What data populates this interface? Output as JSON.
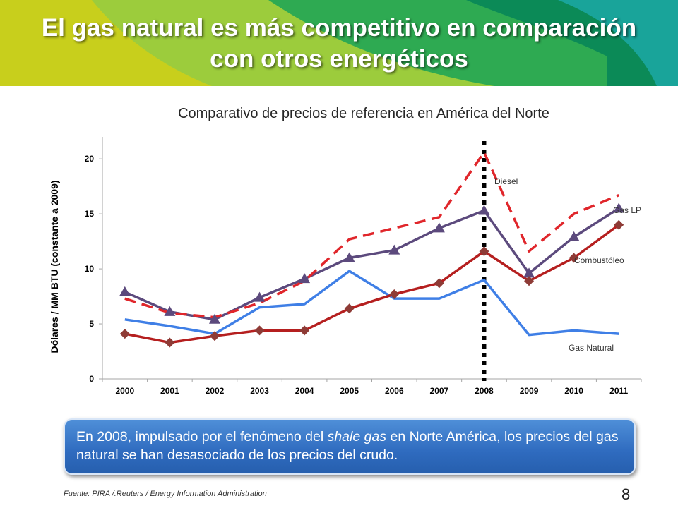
{
  "slide": {
    "title_line1": "El gas natural es más competitivo en comparación",
    "title_line2": "con otros energéticos",
    "callout_pre": "En 2008, impulsado por el fenómeno del ",
    "callout_em": "shale gas",
    "callout_post": " en Norte América, los precios del gas natural se han desasociado de los precios del crudo.",
    "source": "Fuente: PIRA /.Reuters / Energy Information Administration",
    "page_number": "8"
  },
  "colors": {
    "banner": [
      "#c8cf1c",
      "#9ccc3c",
      "#2eaa52",
      "#0b8a57",
      "#19a49a"
    ],
    "diesel": "#e0262b",
    "gas_lp": "#5c4a7d",
    "combustoleo": "#b51f1f",
    "combustoleo_marker": "#8e3b36",
    "gas_natural": "#3f7fe6"
  },
  "chart_data": {
    "type": "line",
    "title": "Comparativo de precios de referencia en América del Norte",
    "xlabel": "",
    "ylabel": "Dólares / MM BTU (constante a 2009)",
    "categories": [
      "2000",
      "2001",
      "2002",
      "2003",
      "2004",
      "2005",
      "2006",
      "2007",
      "2008",
      "2009",
      "2010",
      "2011"
    ],
    "ylim": [
      0,
      22
    ],
    "yticks": [
      "0",
      "5",
      "10",
      "15",
      "20"
    ],
    "grid": false,
    "legend": "inline labels",
    "annotation": "vertical dotted line at 2008",
    "series": [
      {
        "name": "Diesel",
        "style": "dashed",
        "marker": "none",
        "values": [
          7.3,
          6.0,
          5.6,
          6.9,
          8.9,
          12.7,
          13.7,
          14.7,
          20.6,
          11.6,
          15.0,
          16.7
        ]
      },
      {
        "name": "Gas LP",
        "style": "solid",
        "marker": "triangle",
        "values": [
          7.9,
          6.1,
          5.4,
          7.4,
          9.1,
          11.0,
          11.7,
          13.7,
          15.3,
          9.6,
          12.9,
          15.5
        ]
      },
      {
        "name": "Combustóleo",
        "style": "solid",
        "marker": "diamond",
        "values": [
          4.1,
          3.3,
          3.9,
          4.4,
          4.4,
          6.4,
          7.7,
          8.7,
          11.6,
          8.9,
          11.0,
          14.0
        ]
      },
      {
        "name": "Gas Natural",
        "style": "solid",
        "marker": "none",
        "values": [
          5.4,
          4.8,
          4.1,
          6.5,
          6.8,
          9.8,
          7.3,
          7.3,
          9.0,
          4.0,
          4.4,
          4.1
        ]
      }
    ]
  }
}
